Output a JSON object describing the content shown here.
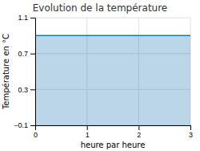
{
  "chart_data": {
    "type": "area",
    "title": "Evolution de la température",
    "xlabel": "heure par heure",
    "ylabel": "Température en °C",
    "x": [
      0,
      3
    ],
    "values": [
      0.9,
      0.9
    ],
    "xlim": [
      0,
      3
    ],
    "ylim": [
      -0.1,
      1.1
    ],
    "xticks": [
      0,
      1,
      2,
      3
    ],
    "yticks": [
      {
        "value": -0.1,
        "label": "−0.1"
      },
      0.3,
      0.7,
      1.1
    ],
    "grid": true
  }
}
